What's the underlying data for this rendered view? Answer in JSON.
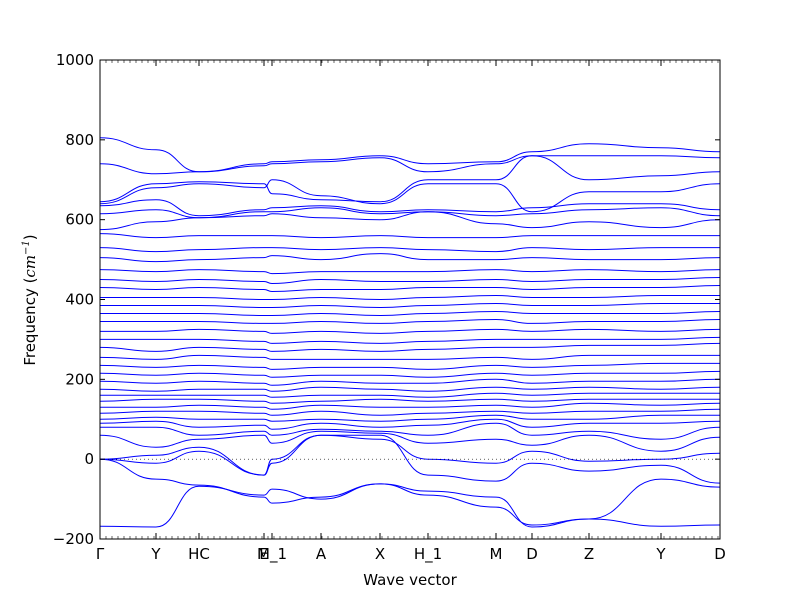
{
  "chart_data": {
    "type": "line",
    "xlabel": "Wave vector",
    "ylabel_text": "Frequency (",
    "ylabel_unit": "cm",
    "ylabel_exp": "−1",
    "ylabel_close": ")",
    "ylim": [
      -200,
      1000
    ],
    "yticks": [
      -200,
      0,
      200,
      400,
      600,
      800,
      1000
    ],
    "xlim": [
      0,
      31
    ],
    "xticks": [
      {
        "label": "Γ",
        "x": 0
      },
      {
        "label": "Y",
        "x": 2.8
      },
      {
        "label": "HC",
        "x": 4.95
      },
      {
        "label": "E",
        "x": 8.2
      },
      {
        "label": "M_1",
        "x": 8.6
      },
      {
        "label": "A",
        "x": 11.05
      },
      {
        "label": "X",
        "x": 14.0
      },
      {
        "label": "H_1",
        "x": 16.4
      },
      {
        "label": "M",
        "x": 19.8
      },
      {
        "label": "D",
        "x": 21.6
      },
      {
        "label": "Z",
        "x": 24.45
      },
      {
        "label": "Y",
        "x": 28.05
      },
      {
        "label": "D",
        "x": 31.0
      }
    ],
    "zero_line": {
      "y": 0,
      "style": "dotted"
    },
    "grid": false,
    "line_color": "#0000ff",
    "series": [
      {
        "x": [
          0,
          2.8,
          4.95,
          8.2,
          8.6,
          11.05,
          14,
          16.4,
          19.8,
          21.6,
          24.45,
          28.05,
          31
        ],
        "y": [
          -168,
          -170,
          -68,
          -90,
          -75,
          -100,
          -62,
          -90,
          -120,
          -165,
          -150,
          -168,
          -165
        ]
      },
      {
        "x": [
          0,
          2.8,
          4.95,
          8.2,
          8.6,
          11.05,
          14,
          16.4,
          19.8,
          21.6,
          24.45,
          28.05,
          31
        ],
        "y": [
          0,
          -50,
          -65,
          -95,
          -110,
          -95,
          -62,
          -80,
          -95,
          -170,
          -150,
          -50,
          -70
        ]
      },
      {
        "x": [
          0,
          2.8,
          4.95,
          8.2,
          8.6,
          11.05,
          14,
          16.4,
          19.8,
          21.6,
          24.45,
          28.05,
          31
        ],
        "y": [
          0,
          -10,
          20,
          -40,
          -10,
          60,
          60,
          -40,
          -55,
          -10,
          -30,
          -15,
          -60
        ]
      },
      {
        "x": [
          0,
          2.8,
          4.95,
          8.2,
          8.6,
          11.05,
          14,
          16.4,
          19.8,
          21.6,
          24.45,
          28.05,
          31
        ],
        "y": [
          0,
          10,
          30,
          -40,
          0,
          60,
          50,
          0,
          -10,
          20,
          -5,
          0,
          15
        ]
      },
      {
        "x": [
          0,
          2.8,
          4.95,
          8.2,
          8.6,
          11.05,
          14,
          16.4,
          19.8,
          21.6,
          24.45,
          28.05,
          31
        ],
        "y": [
          60,
          30,
          50,
          60,
          40,
          70,
          65,
          40,
          50,
          35,
          60,
          20,
          55
        ]
      },
      {
        "x": [
          0,
          2.8,
          4.95,
          8.2,
          8.6,
          11.05,
          14,
          16.4,
          19.8,
          21.6,
          24.45,
          28.05,
          31
        ],
        "y": [
          80,
          80,
          60,
          70,
          60,
          75,
          70,
          60,
          90,
          60,
          70,
          50,
          80
        ]
      },
      {
        "x": [
          0,
          2.8,
          4.95,
          8.2,
          8.6,
          11.05,
          14,
          16.4,
          19.8,
          21.6,
          24.45,
          28.05,
          31
        ],
        "y": [
          90,
          95,
          80,
          85,
          75,
          90,
          80,
          85,
          100,
          80,
          90,
          90,
          95
        ]
      },
      {
        "x": [
          0,
          2.8,
          4.95,
          8.2,
          8.6,
          11.05,
          14,
          16.4,
          19.8,
          21.6,
          24.45,
          28.05,
          31
        ],
        "y": [
          100,
          105,
          100,
          100,
          95,
          100,
          95,
          100,
          110,
          100,
          100,
          110,
          110
        ]
      },
      {
        "x": [
          0,
          2.8,
          4.95,
          8.2,
          8.6,
          11.05,
          14,
          16.4,
          19.8,
          21.6,
          24.45,
          28.05,
          31
        ],
        "y": [
          115,
          120,
          120,
          115,
          110,
          120,
          110,
          115,
          120,
          115,
          120,
          120,
          125
        ]
      },
      {
        "x": [
          0,
          2.8,
          4.95,
          8.2,
          8.6,
          11.05,
          14,
          16.4,
          19.8,
          21.6,
          24.45,
          28.05,
          31
        ],
        "y": [
          130,
          130,
          135,
          130,
          125,
          135,
          130,
          130,
          135,
          130,
          140,
          135,
          140
        ]
      },
      {
        "x": [
          0,
          2.8,
          4.95,
          8.2,
          8.6,
          11.05,
          14,
          16.4,
          19.8,
          21.6,
          24.45,
          28.05,
          31
        ],
        "y": [
          145,
          150,
          150,
          145,
          140,
          145,
          150,
          145,
          150,
          145,
          150,
          150,
          150
        ]
      },
      {
        "x": [
          0,
          2.8,
          4.95,
          8.2,
          8.6,
          11.05,
          14,
          16.4,
          19.8,
          21.6,
          24.45,
          28.05,
          31
        ],
        "y": [
          160,
          160,
          160,
          160,
          155,
          160,
          160,
          155,
          165,
          160,
          165,
          165,
          165
        ]
      },
      {
        "x": [
          0,
          2.8,
          4.95,
          8.2,
          8.6,
          11.05,
          14,
          16.4,
          19.8,
          21.6,
          24.45,
          28.05,
          31
        ],
        "y": [
          175,
          170,
          175,
          175,
          170,
          180,
          175,
          170,
          180,
          175,
          180,
          175,
          180
        ]
      },
      {
        "x": [
          0,
          2.8,
          4.95,
          8.2,
          8.6,
          11.05,
          14,
          16.4,
          19.8,
          21.6,
          24.45,
          28.05,
          31
        ],
        "y": [
          195,
          190,
          195,
          190,
          185,
          195,
          190,
          190,
          200,
          190,
          195,
          195,
          200
        ]
      },
      {
        "x": [
          0,
          2.8,
          4.95,
          8.2,
          8.6,
          11.05,
          14,
          16.4,
          19.8,
          21.6,
          24.45,
          28.05,
          31
        ],
        "y": [
          215,
          210,
          215,
          210,
          205,
          210,
          210,
          205,
          215,
          210,
          215,
          215,
          220
        ]
      },
      {
        "x": [
          0,
          2.8,
          4.95,
          8.2,
          8.6,
          11.05,
          14,
          16.4,
          19.8,
          21.6,
          24.45,
          28.05,
          31
        ],
        "y": [
          235,
          230,
          235,
          230,
          225,
          230,
          230,
          225,
          235,
          230,
          235,
          240,
          240
        ]
      },
      {
        "x": [
          0,
          2.8,
          4.95,
          8.2,
          8.6,
          11.05,
          14,
          16.4,
          19.8,
          21.6,
          24.45,
          28.05,
          31
        ],
        "y": [
          255,
          250,
          260,
          255,
          250,
          250,
          250,
          250,
          255,
          250,
          260,
          260,
          260
        ]
      },
      {
        "x": [
          0,
          2.8,
          4.95,
          8.2,
          8.6,
          11.05,
          14,
          16.4,
          19.8,
          21.6,
          24.45,
          28.05,
          31
        ],
        "y": [
          280,
          270,
          280,
          275,
          270,
          275,
          270,
          275,
          280,
          280,
          285,
          285,
          290
        ]
      },
      {
        "x": [
          0,
          2.8,
          4.95,
          8.2,
          8.6,
          11.05,
          14,
          16.4,
          19.8,
          21.6,
          24.45,
          28.05,
          31
        ],
        "y": [
          300,
          300,
          300,
          295,
          290,
          295,
          290,
          295,
          300,
          300,
          300,
          300,
          305
        ]
      },
      {
        "x": [
          0,
          2.8,
          4.95,
          8.2,
          8.6,
          11.05,
          14,
          16.4,
          19.8,
          21.6,
          24.45,
          28.05,
          31
        ],
        "y": [
          320,
          320,
          325,
          320,
          315,
          320,
          315,
          320,
          325,
          320,
          325,
          320,
          325
        ]
      },
      {
        "x": [
          0,
          2.8,
          4.95,
          8.2,
          8.6,
          11.05,
          14,
          16.4,
          19.8,
          21.6,
          24.45,
          28.05,
          31
        ],
        "y": [
          345,
          345,
          345,
          340,
          340,
          345,
          340,
          345,
          350,
          340,
          345,
          345,
          350
        ]
      },
      {
        "x": [
          0,
          2.8,
          4.95,
          8.2,
          8.6,
          11.05,
          14,
          16.4,
          19.8,
          21.6,
          24.45,
          28.05,
          31
        ],
        "y": [
          365,
          365,
          365,
          360,
          360,
          365,
          360,
          365,
          370,
          365,
          365,
          365,
          370
        ]
      },
      {
        "x": [
          0,
          2.8,
          4.95,
          8.2,
          8.6,
          11.05,
          14,
          16.4,
          19.8,
          21.6,
          24.45,
          28.05,
          31
        ],
        "y": [
          385,
          385,
          385,
          380,
          380,
          385,
          380,
          385,
          390,
          385,
          385,
          390,
          390
        ]
      },
      {
        "x": [
          0,
          2.8,
          4.95,
          8.2,
          8.6,
          11.05,
          14,
          16.4,
          19.8,
          21.6,
          24.45,
          28.05,
          31
        ],
        "y": [
          405,
          405,
          405,
          400,
          400,
          405,
          400,
          405,
          410,
          405,
          405,
          410,
          410
        ]
      },
      {
        "x": [
          0,
          2.8,
          4.95,
          8.2,
          8.6,
          11.05,
          14,
          16.4,
          19.8,
          21.6,
          24.45,
          28.05,
          31
        ],
        "y": [
          430,
          425,
          430,
          425,
          420,
          425,
          425,
          430,
          430,
          425,
          430,
          430,
          435
        ]
      },
      {
        "x": [
          0,
          2.8,
          4.95,
          8.2,
          8.6,
          11.05,
          14,
          16.4,
          19.8,
          21.6,
          24.45,
          28.05,
          31
        ],
        "y": [
          450,
          445,
          450,
          445,
          440,
          450,
          445,
          445,
          450,
          445,
          450,
          450,
          455
        ]
      },
      {
        "x": [
          0,
          2.8,
          4.95,
          8.2,
          8.6,
          11.05,
          14,
          16.4,
          19.8,
          21.6,
          24.45,
          28.05,
          31
        ],
        "y": [
          475,
          470,
          475,
          470,
          465,
          470,
          470,
          470,
          475,
          470,
          475,
          470,
          475
        ]
      },
      {
        "x": [
          0,
          2.8,
          4.95,
          8.2,
          8.6,
          11.05,
          14,
          16.4,
          19.8,
          21.6,
          24.45,
          28.05,
          31
        ],
        "y": [
          505,
          495,
          500,
          505,
          510,
          500,
          515,
          500,
          500,
          505,
          500,
          500,
          505
        ]
      },
      {
        "x": [
          0,
          2.8,
          4.95,
          8.2,
          8.6,
          11.05,
          14,
          16.4,
          19.8,
          21.6,
          24.45,
          28.05,
          31
        ],
        "y": [
          530,
          520,
          525,
          530,
          530,
          525,
          530,
          525,
          520,
          530,
          525,
          530,
          530
        ]
      },
      {
        "x": [
          0,
          2.8,
          4.95,
          8.2,
          8.6,
          11.05,
          14,
          16.4,
          19.8,
          21.6,
          24.45,
          28.05,
          31
        ],
        "y": [
          565,
          555,
          560,
          560,
          560,
          555,
          560,
          555,
          555,
          560,
          560,
          560,
          560
        ]
      },
      {
        "x": [
          0,
          2.8,
          4.95,
          8.2,
          8.6,
          11.05,
          14,
          16.4,
          19.8,
          21.6,
          24.45,
          28.05,
          31
        ],
        "y": [
          575,
          595,
          605,
          610,
          615,
          605,
          600,
          620,
          590,
          580,
          595,
          580,
          600
        ]
      },
      {
        "x": [
          0,
          2.8,
          4.95,
          8.2,
          8.6,
          11.05,
          14,
          16.4,
          19.8,
          21.6,
          24.45,
          28.05,
          31
        ],
        "y": [
          615,
          625,
          605,
          620,
          620,
          630,
          615,
          620,
          610,
          615,
          625,
          630,
          610
        ]
      },
      {
        "x": [
          0,
          2.8,
          4.95,
          8.2,
          8.6,
          11.05,
          14,
          16.4,
          19.8,
          21.6,
          24.45,
          28.05,
          31
        ],
        "y": [
          635,
          650,
          610,
          625,
          630,
          635,
          620,
          625,
          620,
          630,
          640,
          640,
          625
        ]
      },
      {
        "x": [
          0,
          2.8,
          4.95,
          8.2,
          8.6,
          11.05,
          14,
          16.4,
          19.8,
          21.6,
          24.45,
          28.05,
          31
        ],
        "y": [
          640,
          680,
          690,
          680,
          700,
          660,
          640,
          690,
          690,
          620,
          670,
          670,
          690
        ]
      },
      {
        "x": [
          0,
          2.8,
          4.95,
          8.2,
          8.6,
          11.05,
          14,
          16.4,
          19.8,
          21.6,
          24.45,
          28.05,
          31
        ],
        "y": [
          645,
          690,
          695,
          690,
          665,
          650,
          645,
          700,
          700,
          760,
          700,
          710,
          720
        ]
      },
      {
        "x": [
          0,
          2.8,
          4.95,
          8.2,
          8.6,
          11.05,
          14,
          16.4,
          19.8,
          21.6,
          24.45,
          28.05,
          31
        ],
        "y": [
          740,
          715,
          720,
          735,
          740,
          745,
          755,
          720,
          740,
          760,
          760,
          760,
          755
        ]
      },
      {
        "x": [
          0,
          2.8,
          4.95,
          8.2,
          8.6,
          11.05,
          14,
          16.4,
          19.8,
          21.6,
          24.45,
          28.05,
          31
        ],
        "y": [
          805,
          775,
          720,
          740,
          745,
          750,
          760,
          740,
          745,
          770,
          790,
          780,
          770
        ]
      }
    ]
  }
}
